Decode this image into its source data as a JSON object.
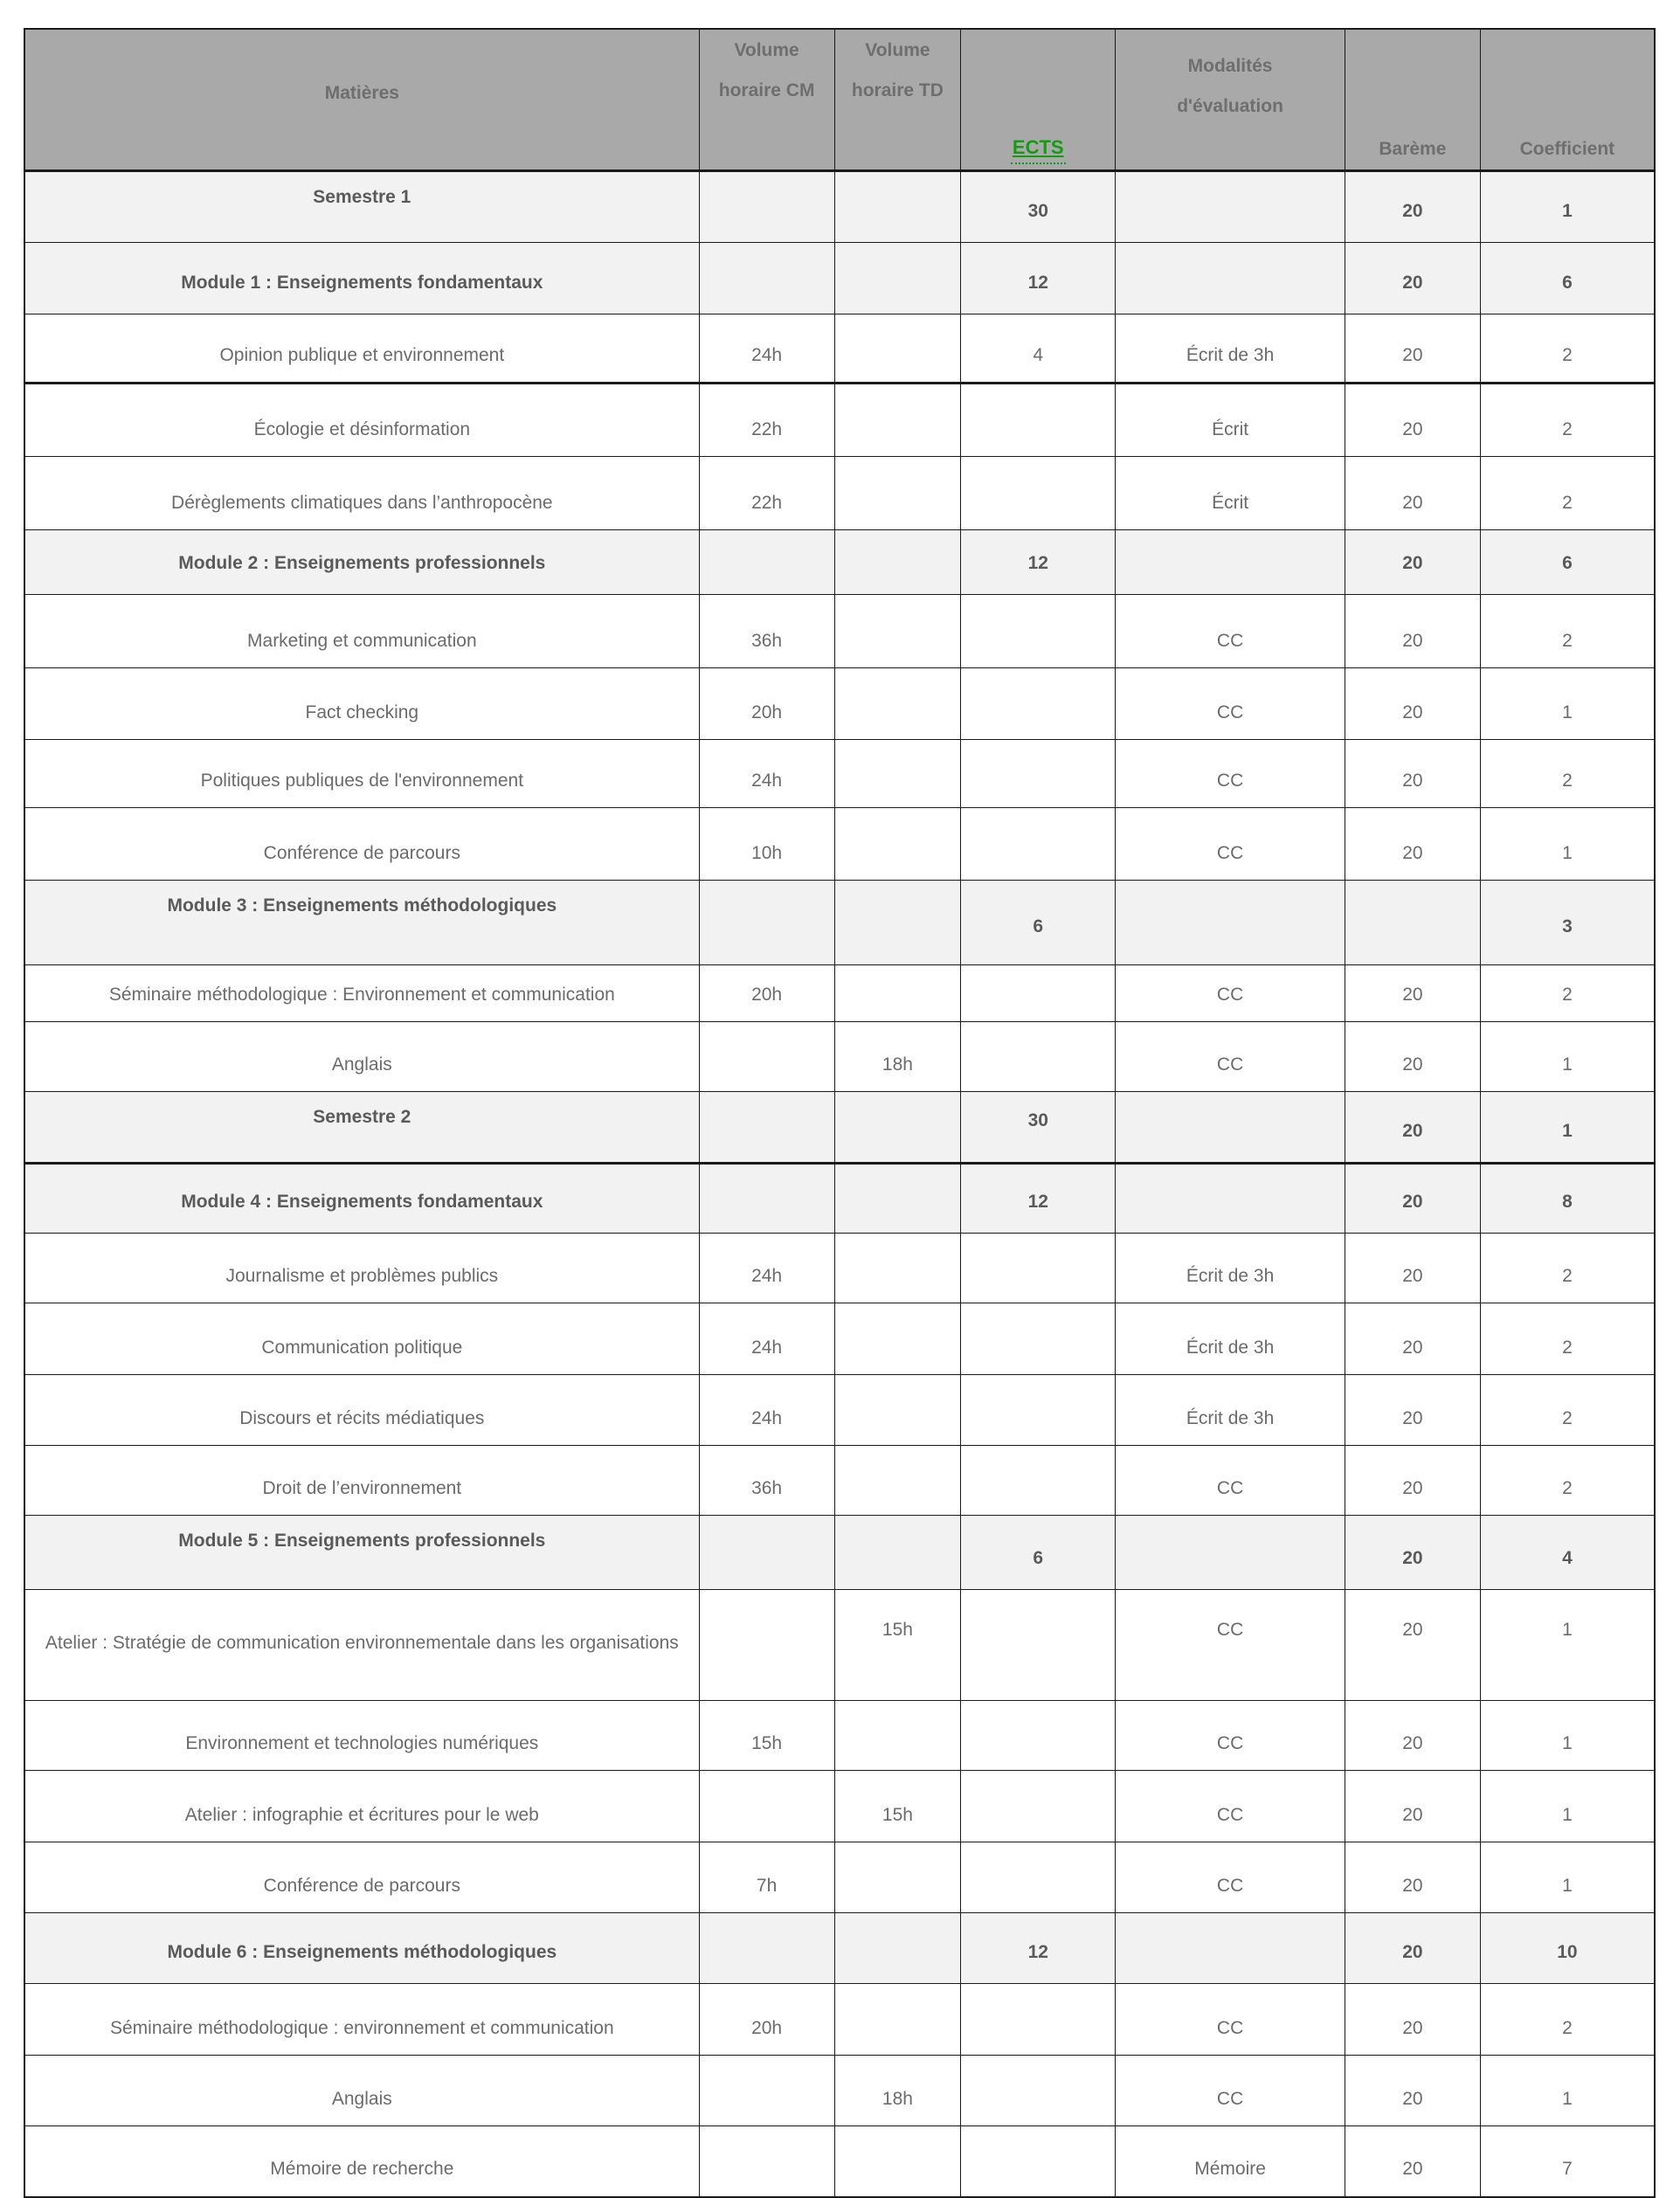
{
  "colors": {
    "header_bg": "#a9a9a9",
    "header_text": "#6e6e6e",
    "section_row_bg": "#f2f2f2",
    "course_row_bg": "#ffffff",
    "text": "#6b6b6b",
    "bold_text": "#5a5a5a",
    "ects_green": "#129c12",
    "border": "#1a1a1a"
  },
  "table": {
    "header": {
      "matieres": "Matières",
      "volume_cm_line1": "Volume",
      "volume_cm_line2": "horaire CM",
      "volume_td_line1": "Volume",
      "volume_td_line2": "horaire TD",
      "ects": "ECTS",
      "modalites_line1": "Modalités",
      "modalites_line2": "d'évaluation",
      "bareme": "Barème",
      "coefficient": "Coefficient"
    },
    "rows": [
      {
        "type": "section",
        "classes": "section title-top",
        "h": 82,
        "matiere": "Semestre 1",
        "cm": "",
        "td": "",
        "ects": "30",
        "modalites": "",
        "bareme": "20",
        "coefficient": "1"
      },
      {
        "type": "section",
        "classes": "section",
        "h": 82,
        "matiere": "Module 1 : Enseignements fondamentaux",
        "cm": "",
        "td": "",
        "ects": "12",
        "modalites": "",
        "bareme": "20",
        "coefficient": "6"
      },
      {
        "type": "course",
        "classes": "course thick",
        "h": 79,
        "matiere": "Opinion publique et environnement",
        "cm": "24h",
        "td": "",
        "ects": "4",
        "modalites": "Écrit de 3h",
        "bareme": "20",
        "coefficient": "2"
      },
      {
        "type": "course",
        "classes": "course",
        "h": 84,
        "matiere": "Écologie et désinformation",
        "cm": "22h",
        "td": "",
        "ects": "",
        "modalites": "Écrit",
        "bareme": "20",
        "coefficient": "2"
      },
      {
        "type": "course",
        "classes": "course",
        "h": 84,
        "matiere": "Dérèglements climatiques dans l’anthropocène",
        "cm": "22h",
        "td": "",
        "ects": "",
        "modalites": "Écrit",
        "bareme": "20",
        "coefficient": "2"
      },
      {
        "type": "section",
        "classes": "section",
        "h": 74,
        "matiere": "Module 2 : Enseignements professionnels",
        "cm": "",
        "td": "",
        "ects": "12",
        "modalites": "",
        "bareme": "20",
        "coefficient": "6"
      },
      {
        "type": "course",
        "classes": "course",
        "h": 84,
        "matiere": "Marketing et communication",
        "cm": "36h",
        "td": "",
        "ects": "",
        "modalites": "CC",
        "bareme": "20",
        "coefficient": "2"
      },
      {
        "type": "course",
        "classes": "course",
        "h": 82,
        "matiere": "Fact checking",
        "cm": "20h",
        "td": "",
        "ects": "",
        "modalites": "CC",
        "bareme": "20",
        "coefficient": "1"
      },
      {
        "type": "course",
        "classes": "course",
        "h": 78,
        "matiere": "Politiques publiques de l'environnement",
        "cm": "24h",
        "td": "",
        "ects": "",
        "modalites": "CC",
        "bareme": "20",
        "coefficient": "2"
      },
      {
        "type": "course",
        "classes": "course",
        "h": 83,
        "matiere": "Conférence de parcours",
        "cm": "10h",
        "td": "",
        "ects": "",
        "modalites": "CC",
        "bareme": "20",
        "coefficient": "1"
      },
      {
        "type": "section",
        "classes": "section title-top vals-mid",
        "h": 97,
        "matiere": "Module 3 : Enseignements méthodologiques",
        "cm": "",
        "td": "",
        "ects": "6",
        "modalites": "",
        "bareme": "",
        "coefficient": "3"
      },
      {
        "type": "course",
        "classes": "course",
        "h": 65,
        "matiere": "Séminaire méthodologique : Environnement et communication",
        "cm": "20h",
        "td": "",
        "ects": "",
        "modalites": "CC",
        "bareme": "20",
        "coefficient": "2"
      },
      {
        "type": "course",
        "classes": "course",
        "h": 80,
        "matiere": "Anglais",
        "cm": "",
        "td": "18h",
        "ects": "",
        "modalites": "CC",
        "bareme": "20",
        "coefficient": "1"
      },
      {
        "type": "section",
        "classes": "section title-top ects-top thick",
        "h": 82,
        "matiere": "Semestre 2",
        "cm": "",
        "td": "",
        "ects": "30",
        "modalites": "",
        "bareme": "20",
        "coefficient": "1"
      },
      {
        "type": "section",
        "classes": "section",
        "h": 80,
        "matiere": "Module 4 : Enseignements fondamentaux",
        "cm": "",
        "td": "",
        "ects": "12",
        "modalites": "",
        "bareme": "20",
        "coefficient": "8"
      },
      {
        "type": "course",
        "classes": "course",
        "h": 80,
        "matiere": "Journalisme et problèmes publics",
        "cm": "24h",
        "td": "",
        "ects": "",
        "modalites": "Écrit de 3h",
        "bareme": "20",
        "coefficient": "2"
      },
      {
        "type": "course",
        "classes": "course",
        "h": 82,
        "matiere": "Communication politique",
        "cm": "24h",
        "td": "",
        "ects": "",
        "modalites": "Écrit de 3h",
        "bareme": "20",
        "coefficient": "2"
      },
      {
        "type": "course",
        "classes": "course",
        "h": 81,
        "matiere": "Discours et récits médiatiques",
        "cm": "24h",
        "td": "",
        "ects": "",
        "modalites": "Écrit de 3h",
        "bareme": "20",
        "coefficient": "2"
      },
      {
        "type": "course",
        "classes": "course",
        "h": 80,
        "matiere": "Droit de l’environnement",
        "cm": "36h",
        "td": "",
        "ects": "",
        "modalites": "CC",
        "bareme": "20",
        "coefficient": "2"
      },
      {
        "type": "section",
        "classes": "section title-top",
        "h": 85,
        "matiere": "Module 5 : Enseignements professionnels",
        "cm": "",
        "td": "",
        "ects": "6",
        "modalites": "",
        "bareme": "20",
        "coefficient": "4"
      },
      {
        "type": "course",
        "classes": "course tall",
        "h": 127,
        "matiere": "Atelier : Stratégie de communication environnementale dans les organisations",
        "cm": "",
        "td": "15h",
        "ects": "",
        "modalites": "CC",
        "bareme": "20",
        "coefficient": "1"
      },
      {
        "type": "course",
        "classes": "course",
        "h": 80,
        "matiere": "Environnement et technologies numériques",
        "cm": "15h",
        "td": "",
        "ects": "",
        "modalites": "CC",
        "bareme": "20",
        "coefficient": "1"
      },
      {
        "type": "course",
        "classes": "course",
        "h": 82,
        "matiere": "Atelier : infographie et écritures pour le web",
        "cm": "",
        "td": "15h",
        "ects": "",
        "modalites": "CC",
        "bareme": "20",
        "coefficient": "1"
      },
      {
        "type": "course",
        "classes": "course",
        "h": 81,
        "matiere": "Conférence de parcours",
        "cm": "7h",
        "td": "",
        "ects": "",
        "modalites": "CC",
        "bareme": "20",
        "coefficient": "1"
      },
      {
        "type": "section",
        "classes": "section",
        "h": 81,
        "matiere": "Module 6 : Enseignements méthodologiques",
        "cm": "",
        "td": "",
        "ects": "12",
        "modalites": "",
        "bareme": "20",
        "coefficient": "10"
      },
      {
        "type": "course",
        "classes": "course",
        "h": 82,
        "matiere": "Séminaire méthodologique : environnement et communication",
        "cm": "20h",
        "td": "",
        "ects": "",
        "modalites": "CC",
        "bareme": "20",
        "coefficient": "2"
      },
      {
        "type": "course",
        "classes": "course",
        "h": 81,
        "matiere": "Anglais",
        "cm": "",
        "td": "18h",
        "ects": "",
        "modalites": "CC",
        "bareme": "20",
        "coefficient": "1"
      },
      {
        "type": "course",
        "classes": "course",
        "h": 81,
        "matiere": "Mémoire de recherche",
        "cm": "",
        "td": "",
        "ects": "",
        "modalites": "Mémoire",
        "bareme": "20",
        "coefficient": "7"
      }
    ]
  }
}
